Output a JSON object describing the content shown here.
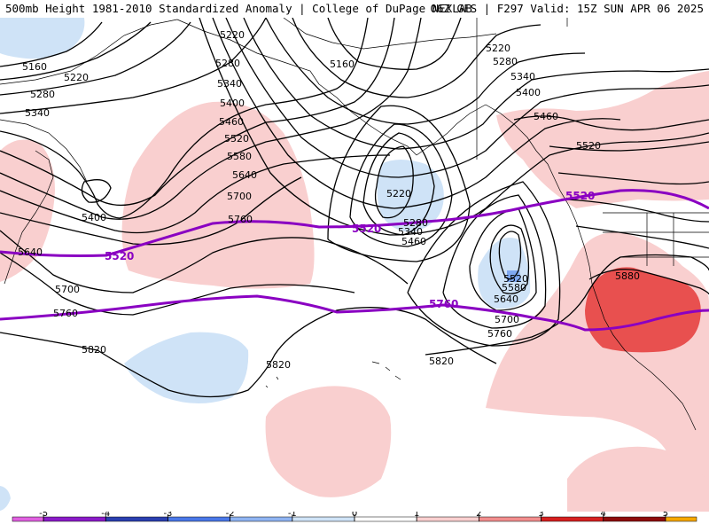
{
  "header": {
    "title": "500mb Height 1981-2010 Standardized Anomaly | College of DuPage NEXLAB",
    "run": "06Z GFS | F297 Valid: 15Z SUN APR 06 2025"
  },
  "colors": {
    "neg_light": "#cfe3f7",
    "neg_mid": "#7fa8f0",
    "pos_light": "#f9cfcf",
    "pos_strong": "#e8504f",
    "climo_line": "#8a00c2",
    "contour": "#000000",
    "coast": "#000000"
  },
  "contours": {
    "labels": {
      "c5160_w": "5160",
      "c5220_w": "5220",
      "c5280_w": "5280",
      "c5340_w": "5340",
      "c5400_w": "5400",
      "c5640_w": "5640",
      "c5700_w": "5700",
      "c5760_w": "5760",
      "c5820_w": "5820",
      "c5220_ak": "5220",
      "c5160_ak": "5160",
      "c5280_ak": "5280",
      "c5340_ak": "5340",
      "c5400_ak": "5400",
      "c5460_ak": "5460",
      "c5520_ak": "5520",
      "c5580_ak": "5580",
      "c5640_ak": "5640",
      "c5700_ak": "5700",
      "c5760_ak": "5760",
      "c5220_e": "5220",
      "c5280_e": "5280",
      "c5340_e": "5340",
      "c5400_e": "5400",
      "c5460_e": "5460",
      "c5520_e": "5520",
      "c5220_low": "5220",
      "c5280_low": "5280",
      "c5340_low": "5340",
      "c5460_low": "5460",
      "c5520_low": "5520",
      "c5580_low": "5580",
      "c5640_low": "5640",
      "c5700_low": "5700",
      "c5760_low": "5760",
      "c5820_low": "5820",
      "c5820_mid": "5820",
      "c5880_sw": "5880"
    },
    "purple": {
      "c5520_a": "5520",
      "c5520_b": "5520",
      "c5520_c": "5520",
      "c5760_a": "5760"
    }
  },
  "legend": {
    "ticks": [
      "-5",
      "-4",
      "-3",
      "-2",
      "-1",
      "0",
      "1",
      "2",
      "3",
      "4",
      "5"
    ],
    "bins": [
      {
        "from": -5.5,
        "to": -5,
        "color": "#e060e0"
      },
      {
        "from": -5,
        "to": -4,
        "color": "#8a1ac8"
      },
      {
        "from": -4,
        "to": -3,
        "color": "#2a3fb0"
      },
      {
        "from": -3,
        "to": -2,
        "color": "#4a78e8"
      },
      {
        "from": -2,
        "to": -1,
        "color": "#8fb4f2"
      },
      {
        "from": -1,
        "to": 0,
        "color": "#cfe3f7"
      },
      {
        "from": 0,
        "to": 1,
        "color": "#ffffff"
      },
      {
        "from": 1,
        "to": 2,
        "color": "#f9cfcf"
      },
      {
        "from": 2,
        "to": 3,
        "color": "#f28d8d"
      },
      {
        "from": 3,
        "to": 4,
        "color": "#d61f1f"
      },
      {
        "from": 4,
        "to": 5,
        "color": "#8e0b0b"
      },
      {
        "from": 5,
        "to": 5.5,
        "color": "#f7a800"
      }
    ]
  }
}
